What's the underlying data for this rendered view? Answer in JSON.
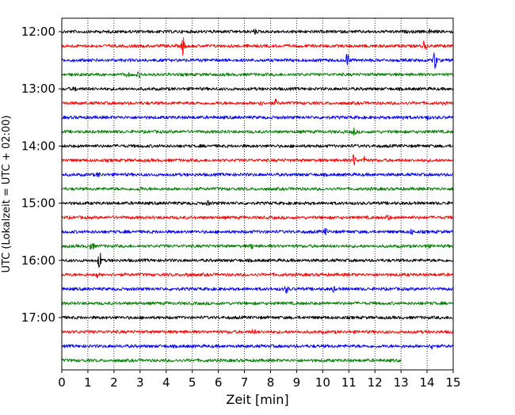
{
  "chart_data": {
    "type": "line",
    "title": "",
    "xlabel": "Zeit  [min]",
    "ylabel": "UTC (Lokalzeit = UTC + 02:00)",
    "xlim": [
      0,
      15
    ],
    "x_ticks": [
      "0",
      "1",
      "2",
      "3",
      "4",
      "5",
      "6",
      "7",
      "8",
      "9",
      "10",
      "11",
      "12",
      "13",
      "14",
      "15"
    ],
    "y_tick_labels": [
      "12:00",
      "13:00",
      "14:00",
      "15:00",
      "16:00",
      "17:00"
    ],
    "grid": "vertical-dotted",
    "colors": [
      "#000000",
      "#ff0000",
      "#0000ff",
      "#008000"
    ],
    "rows": [
      {
        "start": "12:00",
        "color": "#000000",
        "end_min": 15,
        "events": [
          {
            "t": 7.4,
            "amp": 0.4
          },
          {
            "t": 14.1,
            "amp": 0.35
          }
        ]
      },
      {
        "start": "12:15",
        "color": "#ff0000",
        "end_min": 15,
        "events": [
          {
            "t": 4.65,
            "amp": 1.7
          },
          {
            "t": 13.9,
            "amp": 0.9
          }
        ]
      },
      {
        "start": "12:30",
        "color": "#0000ff",
        "end_min": 15,
        "events": [
          {
            "t": 10.95,
            "amp": 1.4
          },
          {
            "t": 14.3,
            "amp": 2.0
          }
        ]
      },
      {
        "start": "12:45",
        "color": "#008000",
        "end_min": 15,
        "events": [
          {
            "t": 2.5,
            "amp": 0.4
          },
          {
            "t": 2.95,
            "amp": 0.4
          }
        ]
      },
      {
        "start": "13:00",
        "color": "#000000",
        "end_min": 15,
        "events": [
          {
            "t": 0.5,
            "amp": 0.35
          }
        ]
      },
      {
        "start": "13:15",
        "color": "#ff0000",
        "end_min": 15,
        "events": [
          {
            "t": 7.6,
            "amp": 0.45
          },
          {
            "t": 8.2,
            "amp": 0.5
          }
        ]
      },
      {
        "start": "13:30",
        "color": "#0000ff",
        "end_min": 15,
        "events": [
          {
            "t": 13.1,
            "amp": 0.3
          },
          {
            "t": 14.0,
            "amp": 0.3
          }
        ]
      },
      {
        "start": "13:45",
        "color": "#008000",
        "end_min": 15,
        "events": [
          {
            "t": 11.2,
            "amp": 0.6
          }
        ]
      },
      {
        "start": "14:00",
        "color": "#000000",
        "end_min": 15,
        "events": []
      },
      {
        "start": "14:15",
        "color": "#ff0000",
        "end_min": 15,
        "events": [
          {
            "t": 11.2,
            "amp": 1.1
          },
          {
            "t": 11.6,
            "amp": 0.6
          }
        ]
      },
      {
        "start": "14:30",
        "color": "#0000ff",
        "end_min": 15,
        "events": [
          {
            "t": 1.4,
            "amp": 0.35
          }
        ]
      },
      {
        "start": "14:45",
        "color": "#008000",
        "end_min": 15,
        "events": [
          {
            "t": 3.0,
            "amp": 0.3
          }
        ]
      },
      {
        "start": "15:00",
        "color": "#000000",
        "end_min": 15,
        "events": [
          {
            "t": 5.6,
            "amp": 0.3
          }
        ]
      },
      {
        "start": "15:15",
        "color": "#ff0000",
        "end_min": 15,
        "events": [
          {
            "t": 12.5,
            "amp": 0.5
          }
        ]
      },
      {
        "start": "15:30",
        "color": "#0000ff",
        "end_min": 15,
        "events": [
          {
            "t": 10.1,
            "amp": 0.5
          },
          {
            "t": 13.4,
            "amp": 0.4
          }
        ]
      },
      {
        "start": "15:45",
        "color": "#008000",
        "end_min": 15,
        "events": [
          {
            "t": 1.15,
            "amp": 0.8
          },
          {
            "t": 7.3,
            "amp": 0.4
          },
          {
            "t": 14.0,
            "amp": 0.4
          }
        ]
      },
      {
        "start": "16:00",
        "color": "#000000",
        "end_min": 15,
        "events": [
          {
            "t": 1.45,
            "amp": 1.6
          }
        ]
      },
      {
        "start": "16:15",
        "color": "#ff0000",
        "end_min": 15,
        "events": [
          {
            "t": 1.35,
            "amp": 0.4
          },
          {
            "t": 4.8,
            "amp": 0.4
          }
        ]
      },
      {
        "start": "16:30",
        "color": "#0000ff",
        "end_min": 15,
        "events": [
          {
            "t": 8.6,
            "amp": 0.7
          },
          {
            "t": 10.4,
            "amp": 0.4
          }
        ]
      },
      {
        "start": "16:45",
        "color": "#008000",
        "end_min": 15,
        "events": []
      },
      {
        "start": "17:00",
        "color": "#000000",
        "end_min": 15,
        "events": []
      },
      {
        "start": "17:15",
        "color": "#ff0000",
        "end_min": 15,
        "events": [
          {
            "t": 7.35,
            "amp": 0.4
          }
        ]
      },
      {
        "start": "17:30",
        "color": "#0000ff",
        "end_min": 15,
        "events": [
          {
            "t": 14.2,
            "amp": 0.6
          }
        ]
      },
      {
        "start": "17:45",
        "color": "#008000",
        "end_min": 13.0,
        "events": []
      }
    ]
  }
}
